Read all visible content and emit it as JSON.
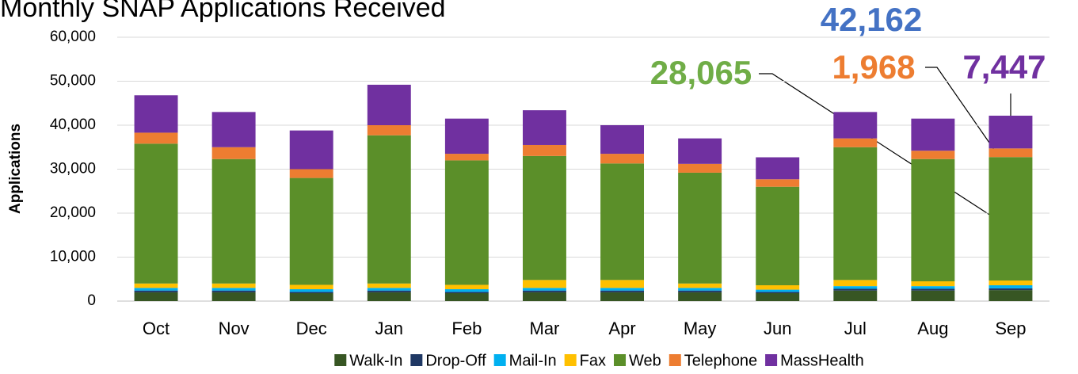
{
  "chart_data": {
    "type": "stacked_bar",
    "title": "Monthly SNAP Applications Received",
    "y_label": "Applications",
    "categories": [
      "Oct",
      "Nov",
      "Dec",
      "Jan",
      "Feb",
      "Mar",
      "Apr",
      "May",
      "Jun",
      "Jul",
      "Aug",
      "Sep"
    ],
    "series": [
      {
        "name": "Walk-In",
        "color": "#375623",
        "values": [
          2000,
          2000,
          1800,
          2000,
          1800,
          2000,
          2000,
          2000,
          1800,
          2400,
          2400,
          2500
        ]
      },
      {
        "name": "Drop-Off",
        "color": "#1f3864",
        "values": [
          400,
          400,
          300,
          400,
          300,
          400,
          400,
          400,
          300,
          400,
          400,
          400
        ]
      },
      {
        "name": "Mail-In",
        "color": "#00b0f0",
        "values": [
          600,
          600,
          600,
          600,
          600,
          600,
          600,
          600,
          500,
          600,
          600,
          700
        ]
      },
      {
        "name": "Fax",
        "color": "#ffc000",
        "values": [
          1000,
          1000,
          1000,
          1000,
          1000,
          1800,
          1800,
          1000,
          1000,
          1400,
          1100,
          1082
        ]
      },
      {
        "name": "Web",
        "color": "#5b8f29",
        "values": [
          31800,
          28300,
          24300,
          33700,
          28300,
          28200,
          26500,
          25200,
          22400,
          30200,
          27800,
          28065
        ]
      },
      {
        "name": "Telephone",
        "color": "#ed7d31",
        "values": [
          2500,
          2700,
          2000,
          2300,
          1500,
          2500,
          2200,
          2000,
          1700,
          2000,
          1900,
          1968
        ]
      },
      {
        "name": "MassHealth",
        "color": "#7030a0",
        "values": [
          8500,
          8000,
          8800,
          9200,
          8000,
          7900,
          6500,
          5800,
          5000,
          6000,
          7300,
          7447
        ]
      }
    ],
    "ylim": [
      0,
      60000
    ],
    "yticks": [
      0,
      {
        "value": 10000,
        "label": "10,000"
      },
      {
        "value": 20000,
        "label": "20,000"
      },
      {
        "value": 30000,
        "label": "30,000"
      },
      {
        "value": 40000,
        "label": "40,000"
      },
      {
        "value": 50000,
        "label": "50,000"
      },
      {
        "value": 60000,
        "label": "60,000"
      }
    ],
    "grid": true,
    "legend": "bottom",
    "annotations": [
      {
        "text": "42,162",
        "color": "#4472c4"
      },
      {
        "text": "28,065",
        "color": "#70ad47"
      },
      {
        "text": "1,968",
        "color": "#ed7d31"
      },
      {
        "text": "7,447",
        "color": "#7030a0"
      }
    ]
  }
}
